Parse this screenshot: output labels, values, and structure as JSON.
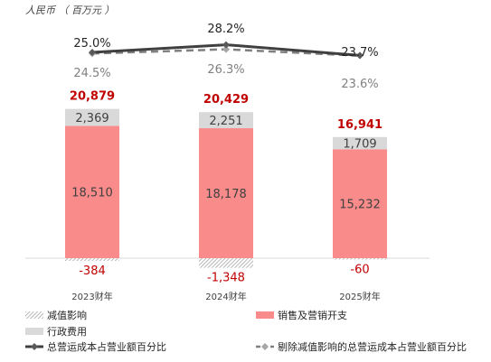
{
  "chart_data": {
    "type": "bar",
    "unit_label": "人民币 （ 百万元 ）",
    "categories": [
      "2023财年",
      "2024财年",
      "2025财年"
    ],
    "totals": [
      "20,879",
      "20,429",
      "16,941"
    ],
    "series": [
      {
        "name": "销售及营销开支",
        "values": [
          18510,
          18178,
          15232
        ],
        "labels": [
          "18,510",
          "18,178",
          "15,232"
        ],
        "color": "#f98b8b"
      },
      {
        "name": "行政费用",
        "values": [
          2369,
          2251,
          1709
        ],
        "labels": [
          "2,369",
          "2,251",
          "1,709"
        ],
        "color": "#d9d9d9"
      },
      {
        "name": "减值影响",
        "values": [
          -384,
          -1348,
          -60
        ],
        "labels": [
          "-384",
          "-1,348",
          "-60"
        ],
        "color": "#9e9e9e"
      }
    ],
    "lines": [
      {
        "name": "总营运成本占营业额百分比",
        "values": [
          25.0,
          28.2,
          23.7
        ],
        "labels": [
          "25.0%",
          "28.2%",
          "23.7%"
        ],
        "color": "#404040",
        "style": "solid"
      },
      {
        "name": "剔除减值影响的总营运成本占营业额百分比",
        "values": [
          24.5,
          26.3,
          23.6
        ],
        "labels": [
          "24.5%",
          "26.3%",
          "23.6%"
        ],
        "color": "#808080",
        "style": "dashed"
      }
    ],
    "total_color": "#c00000",
    "negative_label_color": "#c00000",
    "legend_position": "bottom"
  }
}
